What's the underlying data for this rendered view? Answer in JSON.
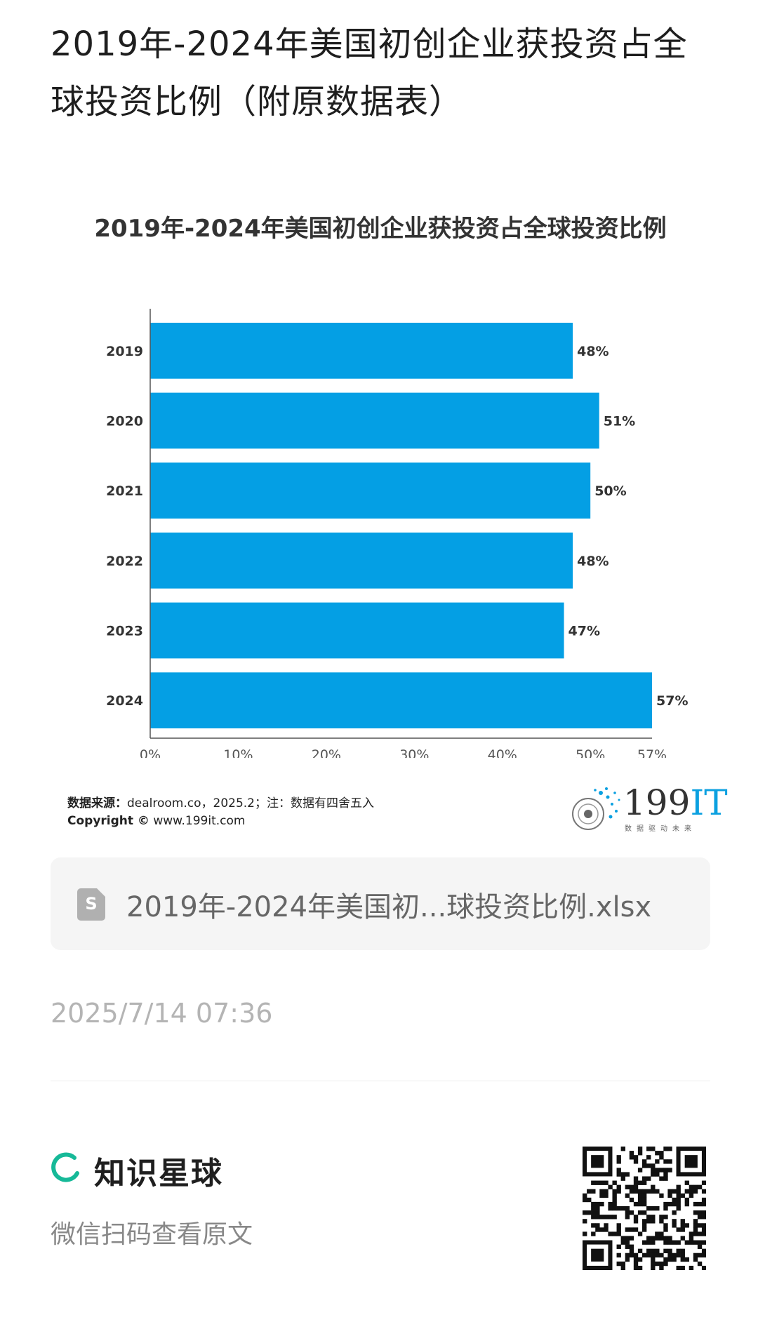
{
  "page": {
    "title": "2019年-2024年美国初创企业获投资占全球投资比例（附原数据表）"
  },
  "chart_data": {
    "type": "bar",
    "orientation": "horizontal",
    "title": "2019年-2024年美国初创企业获投资占全球投资比例",
    "categories": [
      "2019",
      "2020",
      "2021",
      "2022",
      "2023",
      "2024"
    ],
    "values": [
      48,
      51,
      50,
      48,
      47,
      57
    ],
    "value_labels": [
      "48%",
      "51%",
      "50%",
      "48%",
      "47%",
      "57%"
    ],
    "x_ticks": [
      "0%",
      "10%",
      "20%",
      "30%",
      "40%",
      "50%",
      "57%"
    ],
    "x_tick_values": [
      0,
      10,
      20,
      30,
      40,
      50,
      57
    ],
    "xlim": [
      0,
      57
    ],
    "bar_color": "#049fe4",
    "grid": false
  },
  "source": {
    "label": "数据来源：",
    "text": "dealroom.co，2025.2；注：数据有四舍五入",
    "copyright_label": "Copyright ©",
    "copyright_text": "www.199it.com"
  },
  "watermark_logo": {
    "text_main": "199",
    "text_accent": "IT",
    "tagline": "数据驱动未来"
  },
  "file": {
    "icon_letter": "S",
    "name": "2019年-2024年美国初...球投资比例.xlsx"
  },
  "timestamp": "2025/7/14 07:36",
  "footer": {
    "brand_name": "知识星球",
    "scan_prompt": "微信扫码查看原文",
    "brand_color": "#16b998"
  }
}
